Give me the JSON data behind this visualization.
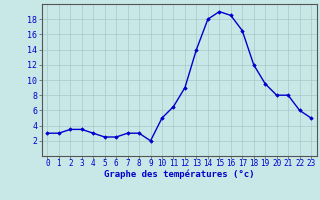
{
  "hours": [
    0,
    1,
    2,
    3,
    4,
    5,
    6,
    7,
    8,
    9,
    10,
    11,
    12,
    13,
    14,
    15,
    16,
    17,
    18,
    19,
    20,
    21,
    22,
    23
  ],
  "temps": [
    3,
    3,
    3.5,
    3.5,
    3,
    2.5,
    2.5,
    3,
    3,
    2,
    5,
    6.5,
    9,
    14,
    18,
    19,
    18.5,
    16.5,
    12,
    9.5,
    8,
    8,
    6,
    5
  ],
  "line_color": "#0000cc",
  "marker": "D",
  "marker_size": 1.8,
  "bg_color": "#c8e8e8",
  "grid_color": "#aac8c8",
  "xlabel": "Graphe des températures (°c)",
  "xlabel_color": "#0000cc",
  "xlabel_fontsize": 6.5,
  "ylim": [
    0,
    20
  ],
  "yticks": [
    2,
    4,
    6,
    8,
    10,
    12,
    14,
    16,
    18
  ],
  "xlim": [
    -0.5,
    23.5
  ],
  "xticks": [
    0,
    1,
    2,
    3,
    4,
    5,
    6,
    7,
    8,
    9,
    10,
    11,
    12,
    13,
    14,
    15,
    16,
    17,
    18,
    19,
    20,
    21,
    22,
    23
  ],
  "tick_color": "#0000cc",
  "tick_fontsize": 5.5,
  "ytick_fontsize": 6.0,
  "spine_color": "#555555",
  "line_width": 1.0
}
